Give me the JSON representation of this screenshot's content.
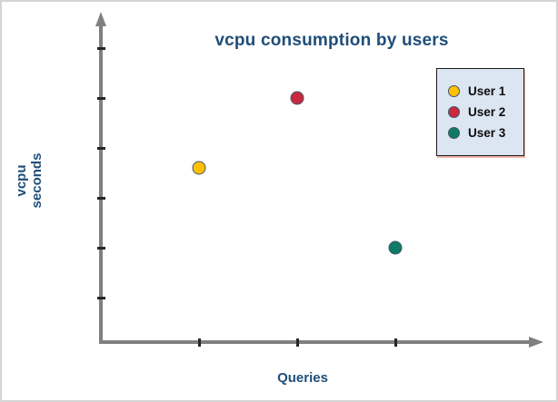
{
  "chart_data": {
    "type": "scatter",
    "title": "vcpu consumption by users",
    "xlabel": "Queries",
    "ylabel": "vcpu seconds",
    "grid": false,
    "legend_position": "top-right",
    "x_axis": {
      "ticks": [
        1,
        2,
        3
      ],
      "tick_labels_shown": false,
      "arrow": true
    },
    "y_axis": {
      "ticks": [
        1,
        2,
        3,
        4,
        5,
        6
      ],
      "tick_labels_shown": false,
      "arrow": true
    },
    "series": [
      {
        "name": "User 1",
        "color": "#FFC000",
        "points": [
          {
            "x": 1,
            "y": 3.6
          }
        ]
      },
      {
        "name": "User 2",
        "color": "#C9293D",
        "points": [
          {
            "x": 2,
            "y": 5.0
          }
        ]
      },
      {
        "name": "User 3",
        "color": "#0E7B67",
        "points": [
          {
            "x": 3,
            "y": 2.0
          }
        ]
      }
    ]
  },
  "style": {
    "title_color": "#1F4E79",
    "axis_color": "#808080",
    "tick_color": "#262626",
    "legend_bg": "#DCE6F2",
    "legend_border": "#1c1c1c",
    "legend_shadow": "#EFB5AC",
    "marker_outline": "#44546A",
    "frame_border": "#D4D4D4",
    "canvas_bg": "#FFFFFF"
  }
}
